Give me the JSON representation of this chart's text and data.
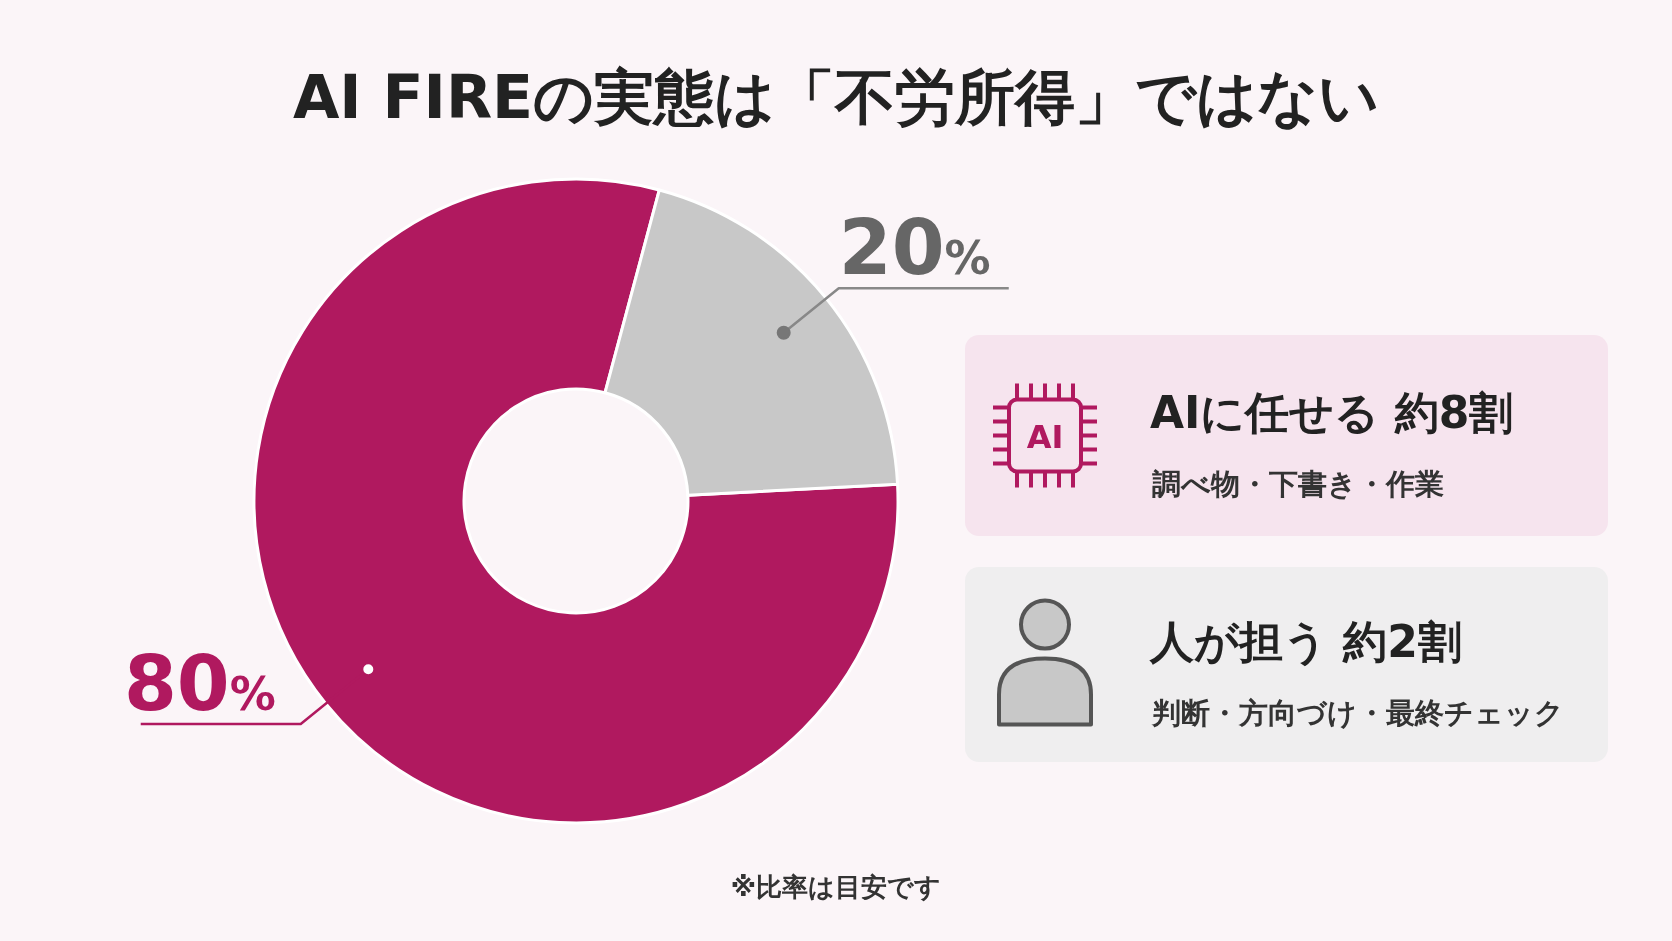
{
  "chart_data": {
    "type": "donut",
    "title": "AI FIREの実態は「不労所得」ではない",
    "categories": [
      "AIに任せる 約8割",
      "人が担う 約2割"
    ],
    "values": [
      80,
      20
    ],
    "colors": [
      "#b0195f",
      "#c8c8c8"
    ],
    "value_labels": [
      "80%",
      "20%"
    ],
    "legend": "right",
    "annotations": [
      "調べ物・下書き・作業",
      "判断・方向づけ・最終チェック",
      "※比率は目安です",
      "AI"
    ]
  }
}
